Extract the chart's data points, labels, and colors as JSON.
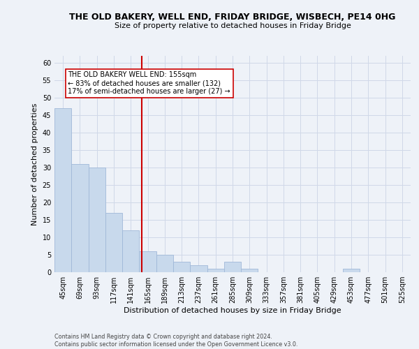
{
  "title": "THE OLD BAKERY, WELL END, FRIDAY BRIDGE, WISBECH, PE14 0HG",
  "subtitle": "Size of property relative to detached houses in Friday Bridge",
  "xlabel": "Distribution of detached houses by size in Friday Bridge",
  "ylabel": "Number of detached properties",
  "footnote1": "Contains HM Land Registry data © Crown copyright and database right 2024.",
  "footnote2": "Contains public sector information licensed under the Open Government Licence v3.0.",
  "bar_labels": [
    "45sqm",
    "69sqm",
    "93sqm",
    "117sqm",
    "141sqm",
    "165sqm",
    "189sqm",
    "213sqm",
    "237sqm",
    "261sqm",
    "285sqm",
    "309sqm",
    "333sqm",
    "357sqm",
    "381sqm",
    "405sqm",
    "429sqm",
    "453sqm",
    "477sqm",
    "501sqm",
    "525sqm"
  ],
  "bar_values": [
    47,
    31,
    30,
    17,
    12,
    6,
    5,
    3,
    2,
    1,
    3,
    1,
    0,
    0,
    0,
    0,
    0,
    1,
    0,
    0,
    0
  ],
  "bar_color": "#c8d9ec",
  "bar_edge_color": "#a0b8d8",
  "vline_x": 4.65,
  "vline_color": "#cc0000",
  "annotation_text": "THE OLD BAKERY WELL END: 155sqm\n← 83% of detached houses are smaller (132)\n17% of semi-detached houses are larger (27) →",
  "annotation_box_color": "#ffffff",
  "annotation_box_edge": "#cc0000",
  "ylim": [
    0,
    62
  ],
  "yticks": [
    0,
    5,
    10,
    15,
    20,
    25,
    30,
    35,
    40,
    45,
    50,
    55,
    60
  ],
  "grid_color": "#d0d8e8",
  "bg_color": "#eef2f8",
  "title_fontsize": 9.0,
  "subtitle_fontsize": 8.0,
  "xlabel_fontsize": 8.0,
  "ylabel_fontsize": 8.0,
  "tick_fontsize": 7.0,
  "annot_fontsize": 7.0,
  "footnote_fontsize": 5.8
}
